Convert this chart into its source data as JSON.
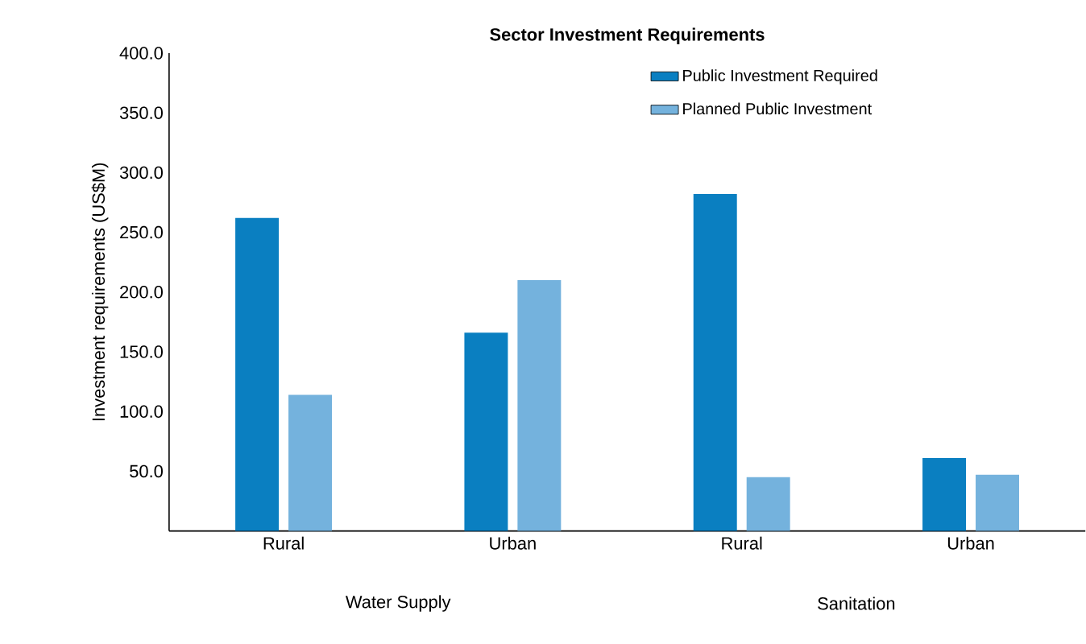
{
  "chart_data": {
    "type": "bar",
    "title": "Sector Investment Requirements",
    "ylabel": "Investment requirements (US$M)",
    "categories": [
      "Rural",
      "Urban",
      "Rural",
      "Urban"
    ],
    "series": [
      {
        "name": "Public Investment Required",
        "color": "#0a7fc1",
        "values": [
          262,
          166,
          282,
          61
        ]
      },
      {
        "name": "Planned Public Investment",
        "color": "#74b2dd",
        "values": [
          114,
          210,
          45,
          47
        ]
      }
    ],
    "ylim": [
      0,
      400
    ],
    "yticks": [
      {
        "value": 50,
        "label": "50.0"
      },
      {
        "value": 100,
        "label": "100.0"
      },
      {
        "value": 150,
        "label": "150.0"
      },
      {
        "value": 200,
        "label": "200.0"
      },
      {
        "value": 250,
        "label": "250.0"
      },
      {
        "value": 300,
        "label": "300.0"
      },
      {
        "value": 350,
        "label": "350.0"
      },
      {
        "value": 400,
        "label": "400.0"
      }
    ],
    "annotations": [
      "Water Supply",
      "Sanitation"
    ],
    "legend": "top right",
    "grid": false
  }
}
